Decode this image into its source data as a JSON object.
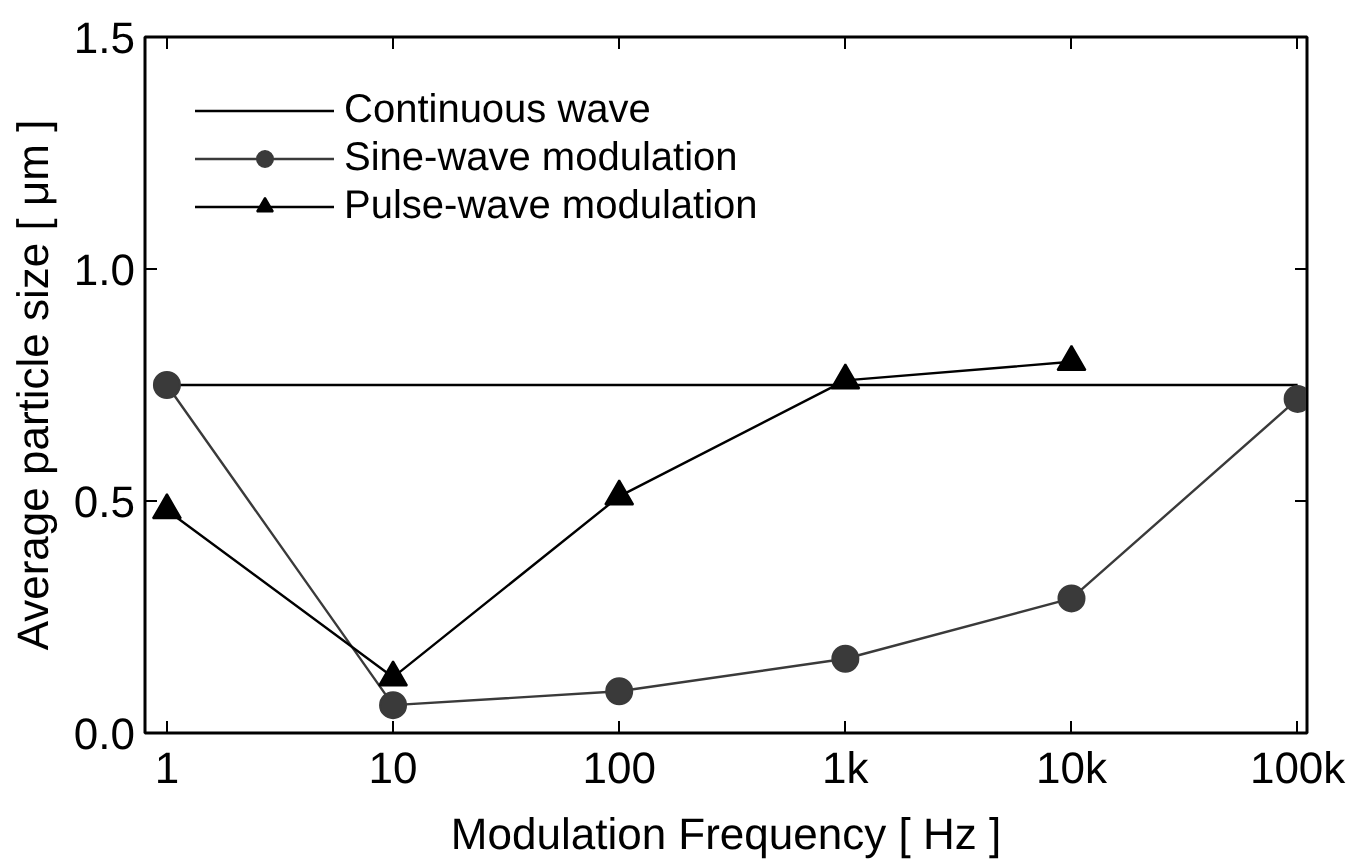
{
  "chart_data": {
    "type": "line",
    "xlabel": "Modulation Frequency [ Hz ]",
    "ylabel": "Average particle size [ μm ]",
    "log": "x",
    "xlim": [
      0.8,
      110000
    ],
    "ylim": [
      0,
      1.5
    ],
    "xticks": [
      1,
      10,
      100,
      {
        "value": 1000,
        "label": "1k"
      },
      {
        "value": 10000,
        "label": "10k"
      },
      {
        "value": 100000,
        "label": "100k"
      }
    ],
    "yticks": [
      {
        "value": 0,
        "label": "0.0"
      },
      {
        "value": 0.5,
        "label": "0.5"
      },
      {
        "value": 1.0,
        "label": "1.0"
      },
      {
        "value": 1.5,
        "label": "1.5"
      }
    ],
    "grid": false,
    "legend": "top left",
    "series": [
      {
        "name": "Continuous wave",
        "color": "#000000",
        "x": [
          1,
          100000
        ],
        "values": [
          0.75,
          0.75
        ],
        "marker": "none"
      },
      {
        "name": "Sine-wave modulation",
        "color": "#3a3a3a",
        "x": [
          1,
          10,
          100,
          1000,
          10000,
          100000
        ],
        "values": [
          0.75,
          0.06,
          0.09,
          0.16,
          0.29,
          0.72
        ],
        "marker": "circle"
      },
      {
        "name": "Pulse-wave modulation",
        "color": "#000000",
        "x": [
          1,
          10,
          100,
          1000,
          10000
        ],
        "values": [
          0.48,
          0.12,
          0.51,
          0.76,
          0.8
        ],
        "marker": "triangle"
      }
    ]
  }
}
